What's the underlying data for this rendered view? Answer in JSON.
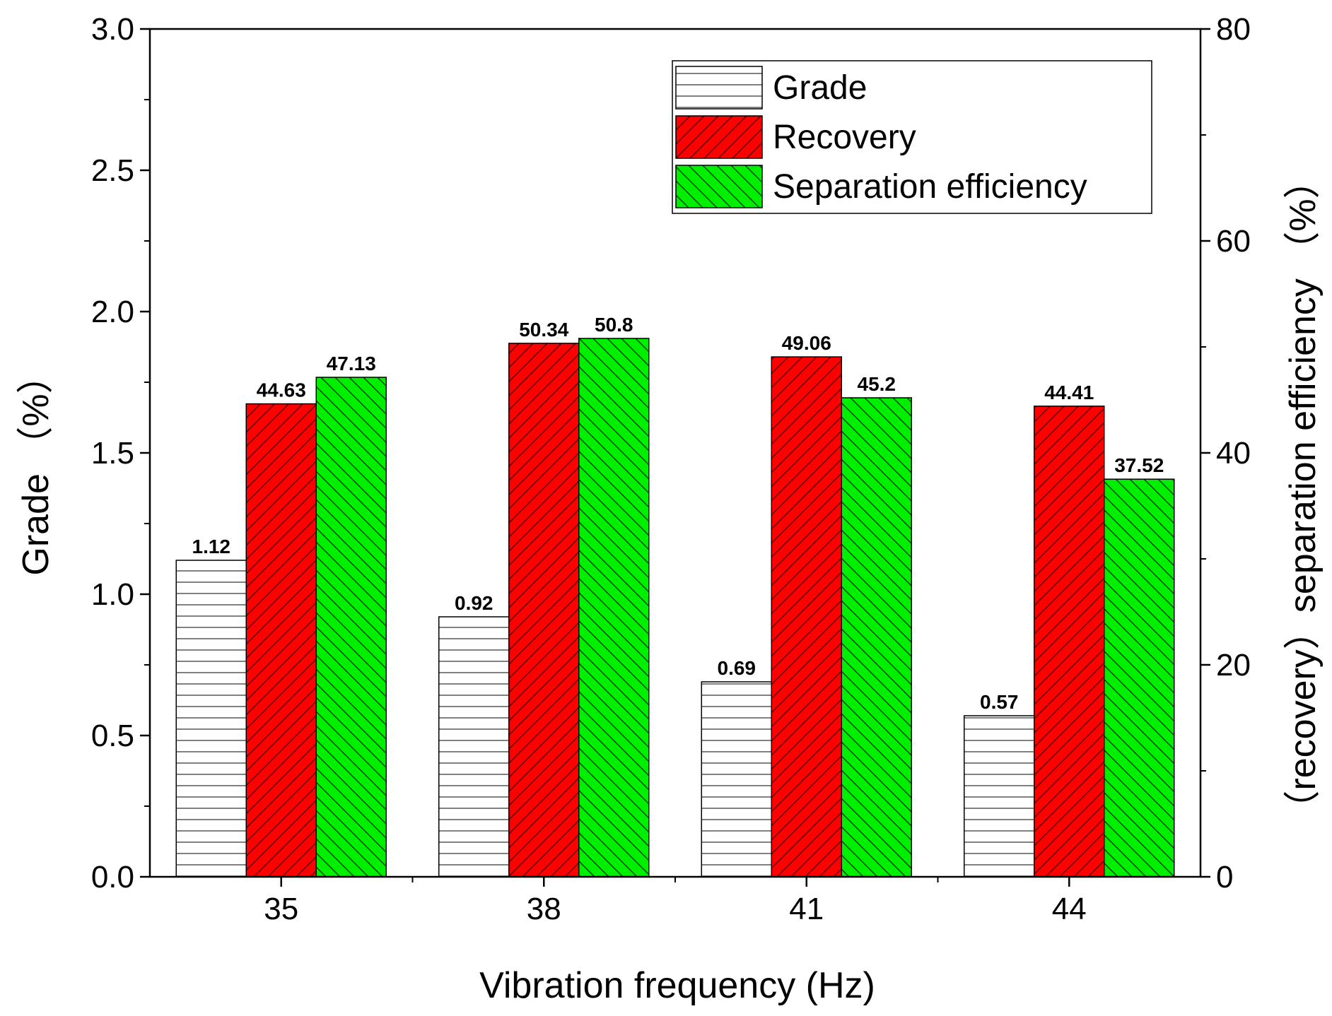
{
  "chart_data": {
    "type": "bar",
    "categories": [
      "35",
      "38",
      "41",
      "44"
    ],
    "xlabel": "Vibration frequency (Hz)",
    "ylabel": "Grade （%）",
    "ylabel_right": "（recovery）separation efficiency （%）",
    "ylim": [
      0,
      3.0
    ],
    "ylim_right": [
      0,
      80
    ],
    "yticks": [
      "0.0",
      "0.5",
      "1.0",
      "1.5",
      "2.0",
      "2.5",
      "3.0"
    ],
    "yticks_right": [
      "0",
      "20",
      "40",
      "60",
      "80"
    ],
    "series": [
      {
        "name": "Grade",
        "axis": "left",
        "color": "#ffffff",
        "values": [
          1.12,
          0.92,
          0.69,
          0.57
        ],
        "labels": [
          "1.12",
          "0.92",
          "0.69",
          "0.57"
        ]
      },
      {
        "name": "Recovery",
        "axis": "right",
        "color": "#ff0000",
        "values": [
          44.63,
          50.34,
          49.06,
          44.41
        ],
        "labels": [
          "44.63",
          "50.34",
          "49.06",
          "44.41"
        ]
      },
      {
        "name": "Separation efficiency",
        "axis": "right",
        "color": "#00ee00",
        "values": [
          47.13,
          50.8,
          45.2,
          37.52
        ],
        "labels": [
          "47.13",
          "50.8",
          "45.2",
          "37.52"
        ]
      }
    ],
    "legend": "top-right"
  }
}
